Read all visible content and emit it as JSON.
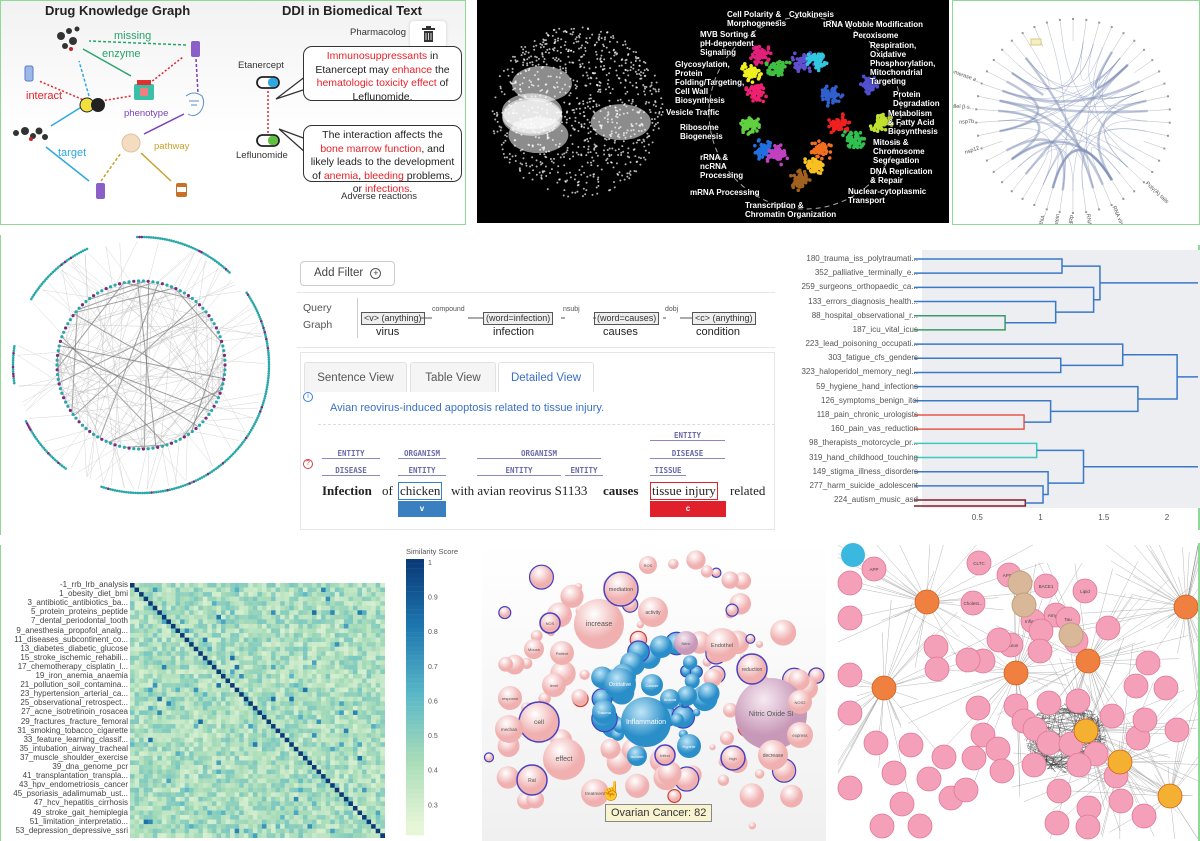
{
  "panel_drug_kg": {
    "title_left": "Drug Knowledge Graph",
    "title_right": "DDI in Biomedical Text",
    "edges": {
      "missing": "missing",
      "enzyme": "enzyme",
      "interact": "interact",
      "phenotype": "phenotype",
      "pathway": "pathway",
      "target": "target"
    },
    "pharmacology_label": "Pharmacolog",
    "drug1": "Etanercept",
    "drug2": "Leflunomide",
    "bubble1": [
      "Immunosuppressants",
      " in Etanercept may ",
      "enhance",
      " the ",
      "hematologic toxicity effect",
      " of Leflunomide."
    ],
    "bubble2": [
      "The interaction affects the ",
      "bone marrow function",
      ", and likely leads to the development of ",
      "anemia",
      ", ",
      "bleeding",
      " problems, or ",
      "infections",
      "."
    ],
    "adverse_label": "Adverse reactions",
    "colors": {
      "missing": "#2aa36b",
      "interact": "#e8202a",
      "phenotype": "#7a3fb8",
      "pathway": "#c9a02a",
      "target": "#2ea8e0"
    }
  },
  "panel_clusters": {
    "background": "#000000",
    "labels": [
      "Cell Polarity &\nMorphogenesis",
      "Cytokinesis",
      "tRNA Wobble Modification",
      "Peroxisome",
      "MVB Sorting &\npH-dependent\nSignaling",
      "Respiration,\nOxidative\nPhosphorylation,\nMitochondrial\nTargeting",
      "Glycosylation,\nProtein\nFolding/Targeting,\nCell Wall\nBiosynthesis",
      "Protein\nDegradation",
      "Vesicle Traffic",
      "Metabolism\n& Fatty Acid\nBiosynthesis",
      "Ribosome\nBiogenesis",
      "Mitosis &\nChromosome\nSegregation",
      "rRNA &\nncRNA\nProcessing",
      "DNA Replication\n& Repair",
      "mRNA Processing",
      "Nuclear-cytoplasmic\nTransport",
      "Transcription &\nChromatin Organization"
    ]
  },
  "panel_chord": {
    "labels": [
      "nsp7b",
      "nsp12",
      "Poly(A) tails",
      "RNA virus Rel...",
      "RNA-dependen...",
      "RdRp",
      "S protein",
      "SARS-CoV RNA...",
      "parallel β-s...",
      "polymerase a..."
    ],
    "highlight_color": "#f3efc2"
  },
  "panel_query": {
    "add_filter": "Add Filter",
    "query_graph_label": [
      "Query",
      "Graph"
    ],
    "nodes": [
      {
        "tag": "<v> (anything)",
        "word": "virus"
      },
      {
        "tag": "(word=infection)",
        "word": "infection"
      },
      {
        "tag": "(word=causes)",
        "word": "causes"
      },
      {
        "tag": "<c> (anything)",
        "word": "condition"
      }
    ],
    "edges": [
      "compound",
      "nsubj",
      "dobj"
    ],
    "tabs": [
      "Sentence View",
      "Table View",
      "Detailed View"
    ],
    "active_tab": "Detailed View",
    "info_text": "Avian reovirus-induced apoptosis related to tissue injury.",
    "annotations": [
      "ENTITY",
      "DISEASE",
      "ORGANISM",
      "ENTITY",
      "ORGANISM",
      "ENTITY",
      "ENTITY",
      "ENTITY",
      "DISEASE",
      "TISSUE"
    ],
    "sentence": {
      "w1": "Infection",
      "w2": "of",
      "w3": "chicken",
      "w4": "with avian reovirus S1133",
      "w5": "causes",
      "w6": "tissue injury",
      "w7": "related"
    },
    "capture_v": "v",
    "capture_c": "c",
    "colors": {
      "v": "#3a7fc0",
      "c": "#e0202a",
      "link": "#3a6fc8"
    }
  },
  "chart_data": [
    {
      "type": "dendrogram",
      "leaves": [
        "180_trauma_iss_polytraumati...",
        "352_palliative_terminally_e...",
        "259_surgeons_orthopaedic_ca...",
        "133_errors_diagnosis_health...",
        "88_hospital_observational_r...",
        "187_icu_vital_icus",
        "223_lead_poisoning_occupati...",
        "303_fatigue_cfs_genders",
        "323_haloperidol_memory_negl...",
        "59_hygiene_hand_infections",
        "126_symptoms_benign_itci",
        "118_pain_chronic_urologists",
        "160_pain_vas_reduction",
        "98_therapists_motorcycle_pr...",
        "319_hand_childhood_touching",
        "149_stigma_illness_disorders",
        "277_harm_suicide_adolescent",
        "224_autism_music_asd"
      ],
      "merges": [
        {
          "a": "L0",
          "b": "L1",
          "h": 1.17,
          "color": "#3a78c8"
        },
        {
          "a": "L4",
          "b": "L5",
          "h": 0.72,
          "color": "#3a9a6a"
        },
        {
          "a": "L3",
          "b": "M1",
          "h": 1.12,
          "color": "#3a78c8"
        },
        {
          "a": "L2",
          "b": "M2",
          "h": 1.42,
          "color": "#3a78c8"
        },
        {
          "a": "M0",
          "b": "M3",
          "h": 1.47,
          "color": "#3a78c8"
        },
        {
          "a": "L7",
          "b": "L8",
          "h": 1.16,
          "color": "#3a78c8"
        },
        {
          "a": "L6",
          "b": "M5",
          "h": 1.65,
          "color": "#3a78c8"
        },
        {
          "a": "L11",
          "b": "L12",
          "h": 0.87,
          "color": "#e8574a"
        },
        {
          "a": "L10",
          "b": "M7",
          "h": 1.08,
          "color": "#3a78c8"
        },
        {
          "a": "L9",
          "b": "M8",
          "h": 1.77,
          "color": "#3a78c8"
        },
        {
          "a": "M6",
          "b": "M9",
          "h": 2.08,
          "color": "#3a78c8"
        },
        {
          "a": "L13",
          "b": "L14",
          "h": 0.97,
          "color": "#3ec8c0"
        },
        {
          "a": "L17",
          "b": "BELOW",
          "h": 0.88,
          "color": "#8a1a2a"
        },
        {
          "a": "L16",
          "b": "M12",
          "h": 1.02,
          "color": "#3a78c8"
        },
        {
          "a": "L15",
          "b": "M13",
          "h": 1.06,
          "color": "#3a78c8"
        },
        {
          "a": "M11",
          "b": "M14",
          "h": 1.34,
          "color": "#3a78c8"
        }
      ],
      "x_ticks": [
        0.5,
        1,
        1.5,
        2
      ],
      "xlim": [
        0,
        2.25
      ],
      "grid": false
    },
    {
      "type": "heatmap",
      "row_labels": [
        "-1_rrb_lrb_analysis",
        "1_obesity_diet_bmi",
        "3_antibiotic_antibiotics_ba...",
        "5_protein_proteins_peptide",
        "7_dental_periodontal_tooth",
        "9_anesthesia_propofol_analg...",
        "11_diseases_subcontinent_co...",
        "13_diabetes_diabetic_glucose",
        "15_stroke_ischemic_rehabili...",
        "17_chemotherapy_cisplatin_l...",
        "19_iron_anemia_anaemia",
        "21_pollution_soil_contamina...",
        "23_hypertension_arterial_ca...",
        "25_observational_retrospect...",
        "27_acne_isotretinoin_rosacea",
        "29_fractures_fracture_femoral",
        "31_smoking_tobacco_cigarette",
        "33_feature_learning_classif...",
        "35_intubation_airway_tracheal",
        "37_muscle_shoulder_exercise",
        "39_dna_genome_pcr",
        "41_transplantation_transpla...",
        "43_hpv_endometriosis_cancer",
        "45_psoriasis_adalimumab_ust...",
        "47_hcv_hepatitis_cirrhosis",
        "49_stroke_gait_hemiplegia",
        "51_limitation_interpretatio...",
        "53_depression_depressive_ssri"
      ],
      "diagonal_value": 1,
      "colorbar_title": "Similarity Score",
      "colorbar_ticks": [
        1,
        0.9,
        0.8,
        0.7,
        0.6,
        0.5,
        0.4,
        0.3
      ],
      "colorscale": [
        "#e8f6d8",
        "#a8dcb8",
        "#5ab8c8",
        "#1e78b0",
        "#0a3a78"
      ]
    },
    {
      "type": "bubble",
      "tooltip": "Ovarian Cancer: 82",
      "labels": [
        "Inflammation",
        "Oxidative",
        "Cancer",
        "Trauma",
        "Nitric Oxide Sl",
        "increase",
        "mediation",
        "activity",
        "effect",
        "cell",
        "level",
        "Patient",
        "NOS",
        "Mouse",
        "NOS2",
        "Rat",
        "treatment",
        "Endothel",
        "reduction",
        "express",
        "decrease",
        "high",
        "ROS",
        "Nitric",
        "Anoxia",
        "Hypertr",
        "Ischem",
        "Infect",
        "response",
        "mechan"
      ]
    }
  ],
  "panel_network": {
    "node_labels": [
      "APP",
      "CLTC",
      "Cholest...",
      "APOE",
      "BACE1",
      "Amylo...",
      "Lipid",
      "Tau",
      "Inflam...",
      "Neuron"
    ],
    "colors": {
      "gene": "#f4a0b8",
      "hub": "#f08040",
      "concept": "#f4b030",
      "type": "#d8b898",
      "other": "#3ab8e0"
    }
  }
}
